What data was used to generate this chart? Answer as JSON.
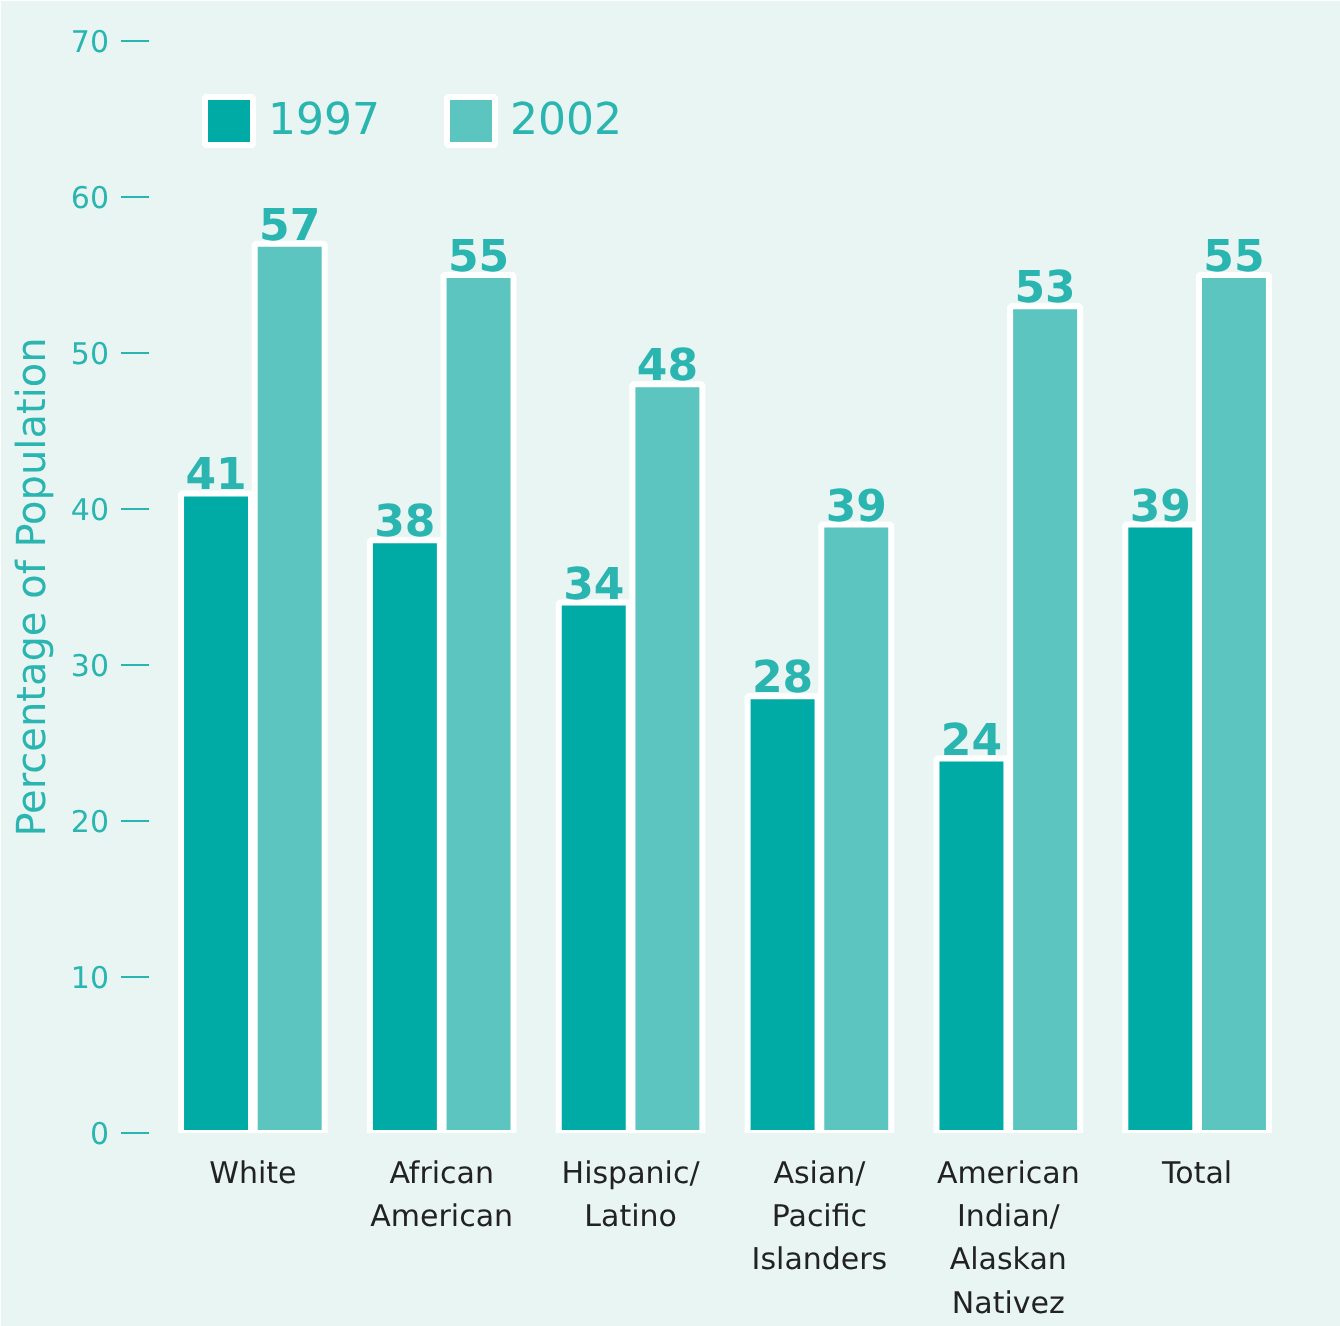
{
  "chart_data": {
    "type": "bar",
    "ylabel": "Percentage of Population",
    "categories": [
      "White",
      "African\nAmerican",
      "Hispanic/\nLatino",
      "Asian/\nPacific\nIslanders",
      "American\nIndian/\nAlaskan\nNativez",
      "Total"
    ],
    "series": [
      {
        "name": "1997",
        "color": "#00aaa5",
        "values": [
          41,
          38,
          34,
          28,
          24,
          39
        ]
      },
      {
        "name": "2002",
        "color": "#5cc5c0",
        "values": [
          57,
          55,
          48,
          39,
          53,
          55
        ]
      }
    ],
    "ylim": [
      0,
      70
    ],
    "yticks": [
      0,
      10,
      20,
      30,
      40,
      50,
      60,
      70
    ],
    "data_labels": true,
    "legend": "top left",
    "grid": false
  }
}
